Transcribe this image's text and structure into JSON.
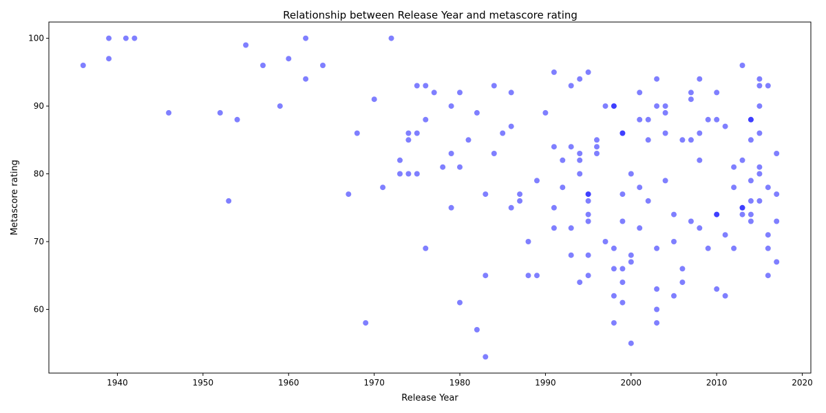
{
  "chart_data": {
    "type": "scatter",
    "title": "Relationship between Release Year and metascore rating",
    "xlabel": "Release Year",
    "ylabel": "Metascore rating",
    "xlim": [
      1932,
      2021
    ],
    "ylim": [
      50.6,
      102.4
    ],
    "xticks": [
      1940,
      1950,
      1960,
      1970,
      1980,
      1990,
      2000,
      2010,
      2020
    ],
    "yticks": [
      60,
      70,
      80,
      90,
      100
    ],
    "grid": false,
    "legend": "none",
    "point_color": "#0000ff",
    "point_opacity": 0.5,
    "points": [
      [
        1936,
        96
      ],
      [
        1939,
        100
      ],
      [
        1939,
        97
      ],
      [
        1941,
        100
      ],
      [
        1942,
        100
      ],
      [
        1946,
        89
      ],
      [
        1952,
        89
      ],
      [
        1953,
        76
      ],
      [
        1954,
        88
      ],
      [
        1955,
        99
      ],
      [
        1957,
        96
      ],
      [
        1959,
        90
      ],
      [
        1960,
        97
      ],
      [
        1962,
        100
      ],
      [
        1962,
        94
      ],
      [
        1964,
        96
      ],
      [
        1967,
        77
      ],
      [
        1968,
        86
      ],
      [
        1969,
        58
      ],
      [
        1970,
        91
      ],
      [
        1971,
        78
      ],
      [
        1972,
        100
      ],
      [
        1973,
        82
      ],
      [
        1973,
        80
      ],
      [
        1974,
        86
      ],
      [
        1974,
        85
      ],
      [
        1974,
        80
      ],
      [
        1975,
        93
      ],
      [
        1975,
        86
      ],
      [
        1975,
        80
      ],
      [
        1976,
        93
      ],
      [
        1976,
        88
      ],
      [
        1976,
        69
      ],
      [
        1977,
        92
      ],
      [
        1978,
        81
      ],
      [
        1979,
        90
      ],
      [
        1979,
        83
      ],
      [
        1979,
        75
      ],
      [
        1980,
        92
      ],
      [
        1980,
        81
      ],
      [
        1980,
        61
      ],
      [
        1981,
        85
      ],
      [
        1982,
        89
      ],
      [
        1982,
        57
      ],
      [
        1983,
        77
      ],
      [
        1983,
        65
      ],
      [
        1983,
        53
      ],
      [
        1984,
        93
      ],
      [
        1984,
        83
      ],
      [
        1985,
        86
      ],
      [
        1986,
        92
      ],
      [
        1986,
        87
      ],
      [
        1986,
        75
      ],
      [
        1987,
        77
      ],
      [
        1987,
        76
      ],
      [
        1988,
        70
      ],
      [
        1988,
        65
      ],
      [
        1989,
        79
      ],
      [
        1989,
        65
      ],
      [
        1990,
        89
      ],
      [
        1991,
        95
      ],
      [
        1991,
        84
      ],
      [
        1991,
        75
      ],
      [
        1991,
        72
      ],
      [
        1992,
        82
      ],
      [
        1992,
        78
      ],
      [
        1993,
        93
      ],
      [
        1993,
        84
      ],
      [
        1993,
        72
      ],
      [
        1993,
        68
      ],
      [
        1994,
        94
      ],
      [
        1994,
        83
      ],
      [
        1994,
        82
      ],
      [
        1994,
        80
      ],
      [
        1994,
        64
      ],
      [
        1995,
        95
      ],
      [
        1995,
        77
      ],
      [
        1995,
        77
      ],
      [
        1995,
        76
      ],
      [
        1995,
        74
      ],
      [
        1995,
        73
      ],
      [
        1995,
        68
      ],
      [
        1995,
        65
      ],
      [
        1996,
        85
      ],
      [
        1996,
        84
      ],
      [
        1996,
        83
      ],
      [
        1997,
        90
      ],
      [
        1997,
        70
      ],
      [
        1998,
        90
      ],
      [
        1998,
        90
      ],
      [
        1998,
        69
      ],
      [
        1998,
        66
      ],
      [
        1998,
        62
      ],
      [
        1998,
        58
      ],
      [
        1999,
        86
      ],
      [
        1999,
        86
      ],
      [
        1999,
        77
      ],
      [
        1999,
        73
      ],
      [
        1999,
        66
      ],
      [
        1999,
        64
      ],
      [
        1999,
        61
      ],
      [
        2000,
        80
      ],
      [
        2000,
        68
      ],
      [
        2000,
        67
      ],
      [
        2000,
        55
      ],
      [
        2001,
        92
      ],
      [
        2001,
        88
      ],
      [
        2001,
        78
      ],
      [
        2001,
        72
      ],
      [
        2002,
        88
      ],
      [
        2002,
        85
      ],
      [
        2002,
        76
      ],
      [
        2003,
        94
      ],
      [
        2003,
        90
      ],
      [
        2003,
        69
      ],
      [
        2003,
        63
      ],
      [
        2003,
        60
      ],
      [
        2003,
        58
      ],
      [
        2004,
        90
      ],
      [
        2004,
        89
      ],
      [
        2004,
        86
      ],
      [
        2004,
        79
      ],
      [
        2005,
        74
      ],
      [
        2005,
        70
      ],
      [
        2005,
        62
      ],
      [
        2006,
        85
      ],
      [
        2006,
        66
      ],
      [
        2006,
        64
      ],
      [
        2007,
        92
      ],
      [
        2007,
        91
      ],
      [
        2007,
        85
      ],
      [
        2007,
        73
      ],
      [
        2008,
        94
      ],
      [
        2008,
        86
      ],
      [
        2008,
        82
      ],
      [
        2008,
        72
      ],
      [
        2009,
        88
      ],
      [
        2009,
        69
      ],
      [
        2010,
        92
      ],
      [
        2010,
        88
      ],
      [
        2010,
        74
      ],
      [
        2010,
        74
      ],
      [
        2010,
        63
      ],
      [
        2011,
        87
      ],
      [
        2011,
        71
      ],
      [
        2011,
        62
      ],
      [
        2012,
        81
      ],
      [
        2012,
        78
      ],
      [
        2012,
        69
      ],
      [
        2013,
        96
      ],
      [
        2013,
        82
      ],
      [
        2013,
        75
      ],
      [
        2013,
        75
      ],
      [
        2013,
        74
      ],
      [
        2014,
        88
      ],
      [
        2014,
        88
      ],
      [
        2014,
        85
      ],
      [
        2014,
        79
      ],
      [
        2014,
        76
      ],
      [
        2014,
        74
      ],
      [
        2014,
        73
      ],
      [
        2015,
        94
      ],
      [
        2015,
        93
      ],
      [
        2015,
        90
      ],
      [
        2015,
        86
      ],
      [
        2015,
        81
      ],
      [
        2015,
        80
      ],
      [
        2015,
        76
      ],
      [
        2016,
        93
      ],
      [
        2016,
        78
      ],
      [
        2016,
        71
      ],
      [
        2016,
        69
      ],
      [
        2016,
        65
      ],
      [
        2017,
        83
      ],
      [
        2017,
        77
      ],
      [
        2017,
        73
      ],
      [
        2017,
        67
      ]
    ]
  }
}
